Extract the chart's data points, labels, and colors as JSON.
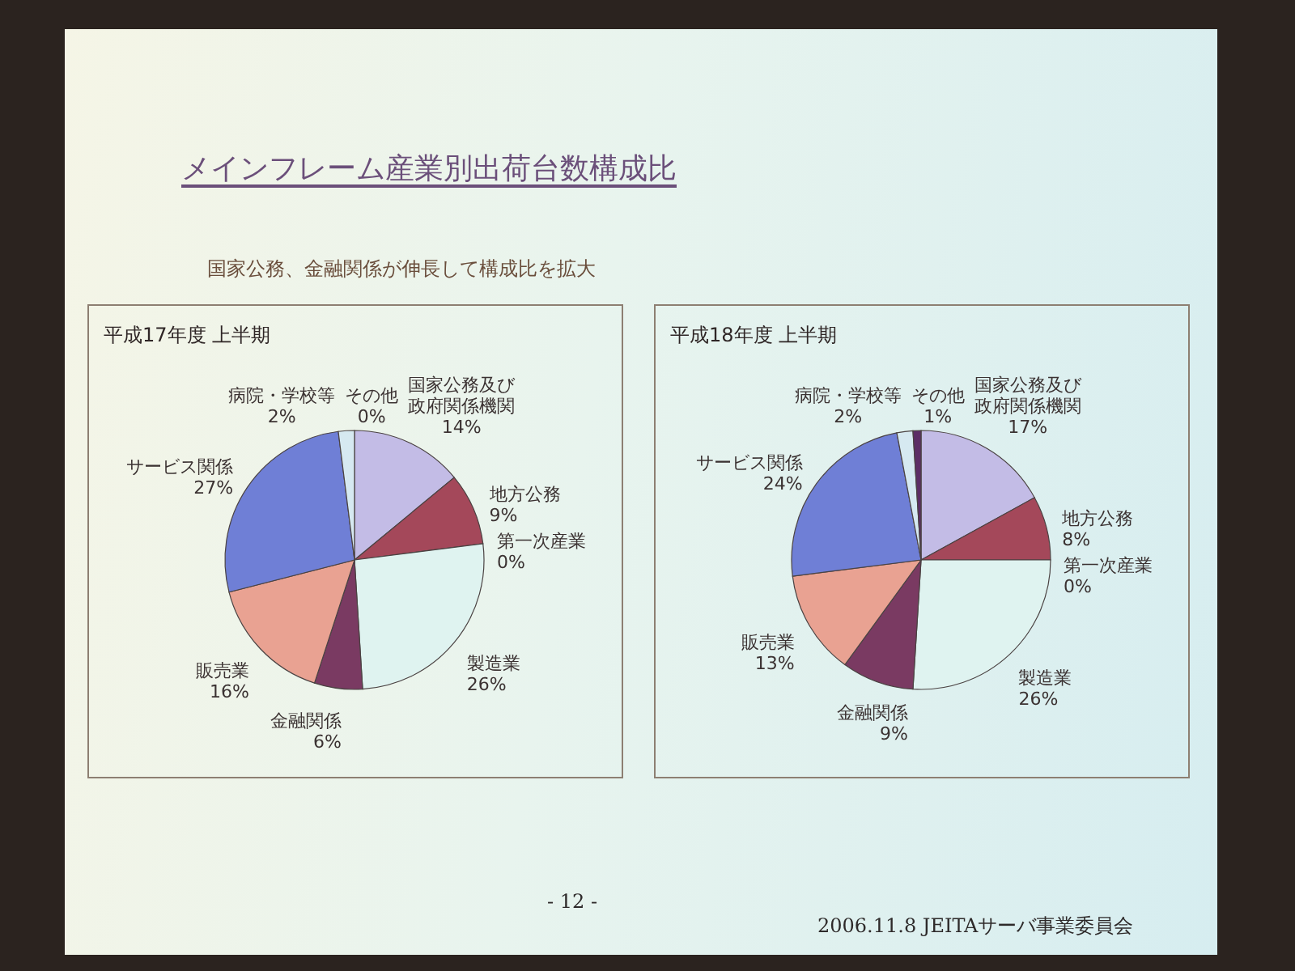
{
  "chart_data": [
    {
      "type": "other",
      "title": "メインフレーム産業別出荷台数構成比",
      "subtitle": "国家公務、金融関係が伸長して構成比を拡大",
      "annotations": [
        "- 12 -",
        "2006.11.8 JEITAサーバ事業委員会"
      ]
    },
    {
      "type": "pie",
      "title": "平成17年度 上半期",
      "categories": [
        "国家公務及び政府関係機関",
        "地方公務",
        "第一次産業",
        "製造業",
        "金融関係",
        "販売業",
        "サービス関係",
        "病院・学校等",
        "その他"
      ],
      "values": [
        14,
        9,
        0,
        26,
        6,
        16,
        27,
        2,
        0
      ],
      "value_labels": [
        "14%",
        "9%",
        "0%",
        "26%",
        "6%",
        "16%",
        "27%",
        "2%",
        "0%"
      ],
      "colors": [
        "#c3bce6",
        "#a4485a",
        "#f2efc6",
        "#dff3f0",
        "#7a3a62",
        "#e9a292",
        "#6f7fd6",
        "#d6e9f1",
        "#5c2d66"
      ]
    },
    {
      "type": "pie",
      "title": "平成18年度 上半期",
      "categories": [
        "国家公務及び政府関係機関",
        "地方公務",
        "第一次産業",
        "製造業",
        "金融関係",
        "販売業",
        "サービス関係",
        "病院・学校等",
        "その他"
      ],
      "values": [
        17,
        8,
        0,
        26,
        9,
        13,
        24,
        2,
        1
      ],
      "value_labels": [
        "17%",
        "8%",
        "0%",
        "26%",
        "9%",
        "13%",
        "24%",
        "2%",
        "1%"
      ],
      "colors": [
        "#c3bce6",
        "#a4485a",
        "#f2efc6",
        "#dff3f0",
        "#7a3a62",
        "#e9a292",
        "#6f7fd6",
        "#d6e9f1",
        "#5c2d66"
      ]
    }
  ]
}
